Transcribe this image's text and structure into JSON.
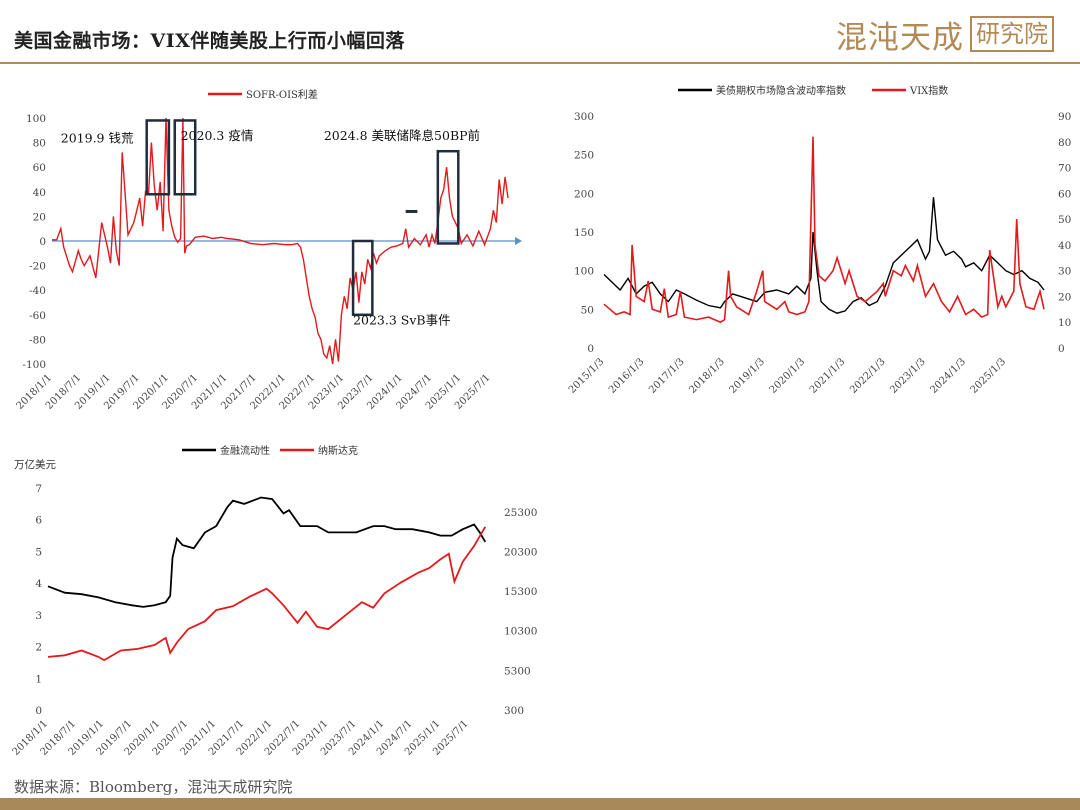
{
  "header": {
    "title": "美国金融市场：VIX伴随美股上行而小幅回落",
    "brand_text": "混沌天成",
    "brand_box": "研究院"
  },
  "footer": {
    "source": "数据来源：Bloomberg，混沌天成研究院"
  },
  "colors": {
    "accent": "#b38a55",
    "red": "#e31a1c",
    "black": "#000000",
    "axis_blue": "#5b8fc9"
  },
  "chart_data": [
    {
      "type": "line",
      "legend": [
        "SOFR-OIS利差"
      ],
      "ylim": [
        -100,
        100
      ],
      "yticks": [
        "100",
        "80",
        "60",
        "40",
        "20",
        "0",
        "-20",
        "-40",
        "-60",
        "-80",
        "-100"
      ],
      "xticks": [
        "2018/1/1",
        "2018/7/1",
        "2019/1/1",
        "2019/7/1",
        "2020/1/1",
        "2020/7/1",
        "2021/1/1",
        "2021/7/1",
        "2022/1/1",
        "2022/7/1",
        "2023/1/1",
        "2023/7/1",
        "2024/1/1",
        "2024/7/1",
        "2025/1/1",
        "2025/7/1"
      ],
      "annotations": [
        "2019.9 钱荒",
        "2020.3 疫情",
        "2024.8 美联储降息50BP前",
        "2023.3 SvB事件"
      ],
      "series": [
        {
          "name": "SOFR-OIS利差",
          "x": [
            2018.0,
            2018.08,
            2018.15,
            2018.2,
            2018.3,
            2018.35,
            2018.45,
            2018.5,
            2018.55,
            2018.65,
            2018.75,
            2018.85,
            2018.95,
            2019.0,
            2019.05,
            2019.1,
            2019.15,
            2019.2,
            2019.3,
            2019.4,
            2019.45,
            2019.5,
            2019.55,
            2019.6,
            2019.65,
            2019.7,
            2019.75,
            2019.8,
            2019.85,
            2019.9,
            2019.95,
            2020.0,
            2020.05,
            2020.1,
            2020.15,
            2020.2,
            2020.24,
            2020.27,
            2020.3,
            2020.35,
            2020.45,
            2020.6,
            2020.75,
            2020.9,
            2021.0,
            2021.2,
            2021.4,
            2021.6,
            2021.8,
            2022.0,
            2022.1,
            2022.2,
            2022.25,
            2022.3,
            2022.35,
            2022.4,
            2022.45,
            2022.5,
            2022.55,
            2022.6,
            2022.65,
            2022.7,
            2022.75,
            2022.8,
            2022.85,
            2022.9,
            2022.95,
            2023.0,
            2023.05,
            2023.1,
            2023.15,
            2023.2,
            2023.25,
            2023.3,
            2023.35,
            2023.4,
            2023.45,
            2023.5,
            2023.55,
            2023.6,
            2023.7,
            2023.8,
            2023.9,
            2024.0,
            2024.05,
            2024.1,
            2024.2,
            2024.3,
            2024.4,
            2024.45,
            2024.5,
            2024.55,
            2024.6,
            2024.65,
            2024.7,
            2024.75,
            2024.8,
            2024.85,
            2024.9,
            2024.95,
            2025.0,
            2025.1,
            2025.2,
            2025.3,
            2025.4,
            2025.5,
            2025.55,
            2025.6,
            2025.65,
            2025.7,
            2025.75,
            2025.8
          ],
          "y": [
            1,
            1,
            10,
            -5,
            -20,
            -25,
            -8,
            -15,
            -20,
            -12,
            -30,
            15,
            -5,
            -18,
            20,
            -8,
            -20,
            72,
            5,
            15,
            25,
            35,
            12,
            40,
            38,
            80,
            45,
            25,
            48,
            8,
            100,
            25,
            12,
            3,
            -1,
            2,
            100,
            -10,
            -4,
            -3,
            3,
            4,
            2,
            3,
            2,
            1,
            -2,
            -3,
            -2,
            -3,
            -3,
            -2,
            -5,
            -15,
            -30,
            -45,
            -55,
            -62,
            -75,
            -80,
            -92,
            -95,
            -85,
            -100,
            -80,
            -98,
            -60,
            -45,
            -55,
            -30,
            -40,
            -25,
            -50,
            -25,
            -35,
            -15,
            -22,
            -10,
            -18,
            -12,
            -8,
            -5,
            -4,
            -2,
            10,
            -5,
            2,
            -3,
            5,
            -5,
            5,
            -2,
            15,
            35,
            42,
            60,
            35,
            20,
            15,
            10,
            -2,
            5,
            -4,
            8,
            -3,
            10,
            25,
            15,
            50,
            30,
            52,
            35
          ]
        }
      ]
    },
    {
      "type": "line",
      "legend": [
        "美债期权市场隐含波动率指数",
        "VIX指数"
      ],
      "ylim_left": [
        0,
        300
      ],
      "ylim_right": [
        0,
        90
      ],
      "yticks_left": [
        "300",
        "250",
        "200",
        "150",
        "100",
        "50",
        "0"
      ],
      "yticks_right": [
        "90",
        "80",
        "70",
        "60",
        "50",
        "40",
        "30",
        "20",
        "10",
        "0"
      ],
      "xticks": [
        "2015/1/3",
        "2016/1/3",
        "2017/1/3",
        "2018/1/3",
        "2019/1/3",
        "2020/1/3",
        "2021/1/3",
        "2022/1/3",
        "2023/1/3",
        "2024/1/3",
        "2025/1/3"
      ],
      "series": [
        {
          "name": "美债期权市场隐含波动率指数",
          "axis": "left",
          "x": [
            2015.0,
            2015.2,
            2015.4,
            2015.6,
            2015.8,
            2016.0,
            2016.2,
            2016.4,
            2016.6,
            2016.8,
            2017.0,
            2017.3,
            2017.6,
            2017.9,
            2018.0,
            2018.2,
            2018.5,
            2018.8,
            2019.0,
            2019.3,
            2019.6,
            2019.8,
            2020.0,
            2020.15,
            2020.2,
            2020.3,
            2020.4,
            2020.6,
            2020.8,
            2021.0,
            2021.2,
            2021.4,
            2021.6,
            2021.8,
            2022.0,
            2022.2,
            2022.4,
            2022.6,
            2022.8,
            2023.0,
            2023.1,
            2023.2,
            2023.3,
            2023.5,
            2023.7,
            2023.9,
            2024.0,
            2024.2,
            2024.4,
            2024.6,
            2024.8,
            2025.0,
            2025.2,
            2025.4,
            2025.6,
            2025.8,
            2025.95
          ],
          "y": [
            95,
            85,
            75,
            90,
            70,
            80,
            85,
            70,
            60,
            75,
            70,
            62,
            55,
            52,
            60,
            70,
            65,
            60,
            72,
            75,
            70,
            80,
            70,
            90,
            150,
            100,
            60,
            50,
            45,
            48,
            60,
            65,
            55,
            60,
            80,
            110,
            120,
            130,
            140,
            115,
            125,
            195,
            140,
            120,
            125,
            115,
            105,
            110,
            100,
            120,
            110,
            100,
            95,
            100,
            90,
            85,
            75
          ]
        },
        {
          "name": "VIX指数",
          "axis": "right",
          "x": [
            2015.0,
            2015.15,
            2015.3,
            2015.5,
            2015.65,
            2015.7,
            2015.8,
            2016.0,
            2016.1,
            2016.2,
            2016.4,
            2016.5,
            2016.6,
            2016.8,
            2016.9,
            2017.0,
            2017.3,
            2017.6,
            2017.9,
            2018.0,
            2018.1,
            2018.15,
            2018.3,
            2018.6,
            2018.8,
            2018.95,
            2019.0,
            2019.3,
            2019.5,
            2019.6,
            2019.8,
            2020.0,
            2020.1,
            2020.2,
            2020.25,
            2020.35,
            2020.5,
            2020.7,
            2020.8,
            2021.0,
            2021.1,
            2021.3,
            2021.5,
            2021.8,
            2021.95,
            2022.0,
            2022.2,
            2022.4,
            2022.5,
            2022.7,
            2022.8,
            2023.0,
            2023.2,
            2023.4,
            2023.6,
            2023.8,
            2024.0,
            2024.2,
            2024.4,
            2024.55,
            2024.6,
            2024.8,
            2024.9,
            2025.0,
            2025.2,
            2025.27,
            2025.35,
            2025.5,
            2025.7,
            2025.85,
            2025.95
          ],
          "y": [
            17,
            15,
            13,
            14,
            13,
            40,
            20,
            18,
            26,
            15,
            14,
            23,
            12,
            13,
            22,
            12,
            11,
            12,
            10,
            11,
            30,
            20,
            16,
            13,
            22,
            30,
            18,
            15,
            18,
            14,
            13,
            14,
            18,
            82,
            40,
            28,
            26,
            30,
            35,
            25,
            30,
            20,
            18,
            22,
            25,
            20,
            30,
            28,
            32,
            26,
            32,
            20,
            25,
            18,
            14,
            20,
            13,
            15,
            12,
            13,
            38,
            16,
            20,
            16,
            22,
            50,
            25,
            16,
            15,
            22,
            15
          ]
        }
      ]
    },
    {
      "type": "line",
      "unit_left": "万亿美元",
      "legend": [
        "金融流动性",
        "纳斯达克"
      ],
      "ylim_left": [
        0,
        7
      ],
      "ylim_right": [
        300,
        28300
      ],
      "yticks_left": [
        "7",
        "6",
        "5",
        "4",
        "3",
        "2",
        "1",
        "0"
      ],
      "yticks_right": [
        "25300",
        "20300",
        "15300",
        "10300",
        "5300",
        "300"
      ],
      "xticks": [
        "2018/1/1",
        "2018/7/1",
        "2019/1/1",
        "2019/7/1",
        "2020/1/1",
        "2020/7/1",
        "2021/1/1",
        "2021/7/1",
        "2022/1/1",
        "2022/7/1",
        "2023/1/1",
        "2023/7/1",
        "2024/1/1",
        "2024/7/1",
        "2025/1/1",
        "2025/7/1"
      ],
      "series": [
        {
          "name": "金融流动性",
          "axis": "left",
          "x": [
            2018.0,
            2018.3,
            2018.6,
            2018.9,
            2019.2,
            2019.5,
            2019.7,
            2019.9,
            2020.1,
            2020.18,
            2020.22,
            2020.3,
            2020.4,
            2020.6,
            2020.8,
            2021.0,
            2021.2,
            2021.3,
            2021.5,
            2021.8,
            2022.0,
            2022.2,
            2022.3,
            2022.5,
            2022.8,
            2023.0,
            2023.2,
            2023.5,
            2023.8,
            2024.0,
            2024.2,
            2024.5,
            2024.8,
            2025.0,
            2025.2,
            2025.4,
            2025.6,
            2025.7,
            2025.8
          ],
          "y": [
            3.9,
            3.7,
            3.65,
            3.55,
            3.4,
            3.3,
            3.25,
            3.3,
            3.4,
            3.6,
            4.8,
            5.4,
            5.2,
            5.1,
            5.6,
            5.8,
            6.4,
            6.6,
            6.5,
            6.7,
            6.65,
            6.2,
            6.3,
            5.8,
            5.8,
            5.6,
            5.6,
            5.6,
            5.8,
            5.8,
            5.7,
            5.7,
            5.6,
            5.5,
            5.5,
            5.7,
            5.85,
            5.6,
            5.3
          ]
        },
        {
          "name": "纳斯达克",
          "axis": "right",
          "x": [
            2018.0,
            2018.3,
            2018.6,
            2018.9,
            2019.0,
            2019.3,
            2019.6,
            2019.9,
            2020.1,
            2020.18,
            2020.3,
            2020.5,
            2020.8,
            2021.0,
            2021.3,
            2021.6,
            2021.9,
            2022.0,
            2022.2,
            2022.45,
            2022.6,
            2022.8,
            2023.0,
            2023.3,
            2023.6,
            2023.8,
            2024.0,
            2024.3,
            2024.6,
            2024.8,
            2025.0,
            2025.15,
            2025.25,
            2025.4,
            2025.6,
            2025.8
          ],
          "y": [
            7000,
            7200,
            7800,
            7000,
            6600,
            7800,
            8000,
            8500,
            9400,
            7500,
            8800,
            10500,
            11500,
            12900,
            13400,
            14600,
            15600,
            15000,
            13500,
            11300,
            12700,
            10800,
            10500,
            12200,
            13900,
            13200,
            15000,
            16400,
            17600,
            18200,
            19300,
            20000,
            16500,
            19000,
            21000,
            23400
          ]
        }
      ]
    }
  ]
}
